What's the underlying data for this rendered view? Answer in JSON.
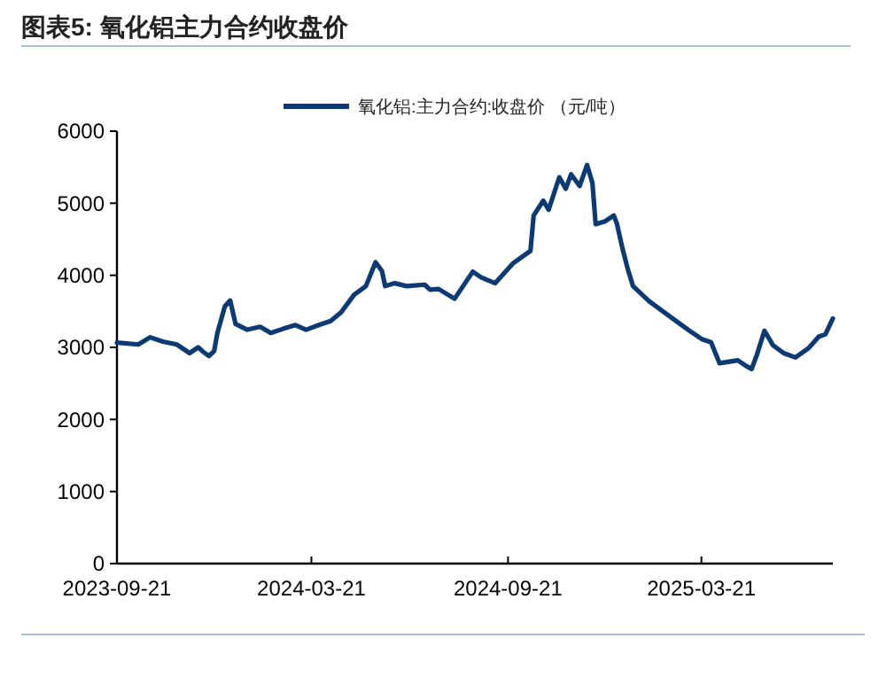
{
  "chart_data": {
    "type": "line",
    "title": "图表5:  氧化铝主力合约收盘价",
    "legend": "top",
    "x": [
      "2023-09-21",
      "2023-10-11",
      "2023-10-22",
      "2023-11-03",
      "2023-11-16",
      "2023-11-28",
      "2023-12-06",
      "2023-12-11",
      "2023-12-16",
      "2023-12-21",
      "2023-12-24",
      "2023-12-31",
      "2024-01-05",
      "2024-01-10",
      "2024-01-21",
      "2024-02-02",
      "2024-02-12",
      "2024-02-24",
      "2024-03-06",
      "2024-03-16",
      "2024-03-28",
      "2024-04-08",
      "2024-04-18",
      "2024-04-30",
      "2024-05-11",
      "2024-05-20",
      "2024-05-26",
      "2024-05-29",
      "2024-06-07",
      "2024-06-18",
      "2024-07-05",
      "2024-07-10",
      "2024-07-18",
      "2024-08-02",
      "2024-08-19",
      "2024-08-27",
      "2024-09-09",
      "2024-09-26",
      "2024-10-12",
      "2024-10-15",
      "2024-10-24",
      "2024-10-29",
      "2024-11-08",
      "2024-11-14",
      "2024-11-19",
      "2024-11-27",
      "2024-12-04",
      "2024-12-09",
      "2024-12-12",
      "2024-12-21",
      "2024-12-29",
      "2025-01-01",
      "2025-01-06",
      "2025-01-11",
      "2025-01-16",
      "2025-01-31",
      "2025-02-22",
      "2025-03-10",
      "2025-03-22",
      "2025-03-30",
      "2025-04-07",
      "2025-04-24",
      "2025-05-02",
      "2025-05-07",
      "2025-05-12",
      "2025-05-19",
      "2025-05-27",
      "2025-06-06",
      "2025-06-17",
      "2025-06-29",
      "2025-07-09",
      "2025-07-15",
      "2025-07-22"
    ],
    "series": [
      {
        "name": "氧化铝:主力合约:收盘价 （元/吨）",
        "color": "#0b3a74",
        "values": [
          3065,
          3040,
          3140,
          3080,
          3040,
          2920,
          3000,
          2935,
          2880,
          2950,
          3200,
          3570,
          3650,
          3325,
          3245,
          3285,
          3200,
          3260,
          3310,
          3245,
          3310,
          3365,
          3490,
          3730,
          3850,
          4180,
          4060,
          3850,
          3890,
          3850,
          3870,
          3800,
          3810,
          3675,
          4050,
          3970,
          3890,
          4170,
          4340,
          4830,
          5035,
          4910,
          5360,
          5200,
          5400,
          5240,
          5530,
          5280,
          4710,
          4750,
          4830,
          4710,
          4380,
          4090,
          3850,
          3640,
          3400,
          3230,
          3110,
          3070,
          2780,
          2820,
          2740,
          2700,
          2900,
          3230,
          3030,
          2920,
          2860,
          2985,
          3150,
          3180,
          3400
        ]
      }
    ],
    "xlim": [
      "2023-09-21",
      "2025-07-22"
    ],
    "xticks": [
      {
        "value": "2023-09-21",
        "label": "2023-09-21"
      },
      {
        "value": "2024-03-21",
        "label": "2024-03-21"
      },
      {
        "value": "2024-09-21",
        "label": "2024-09-21"
      },
      {
        "value": "2025-03-21",
        "label": "2025-03-21"
      }
    ],
    "ylim": [
      0,
      6000
    ],
    "yticks": [
      0,
      1000,
      2000,
      3000,
      4000,
      5000,
      6000
    ],
    "grid": false
  }
}
